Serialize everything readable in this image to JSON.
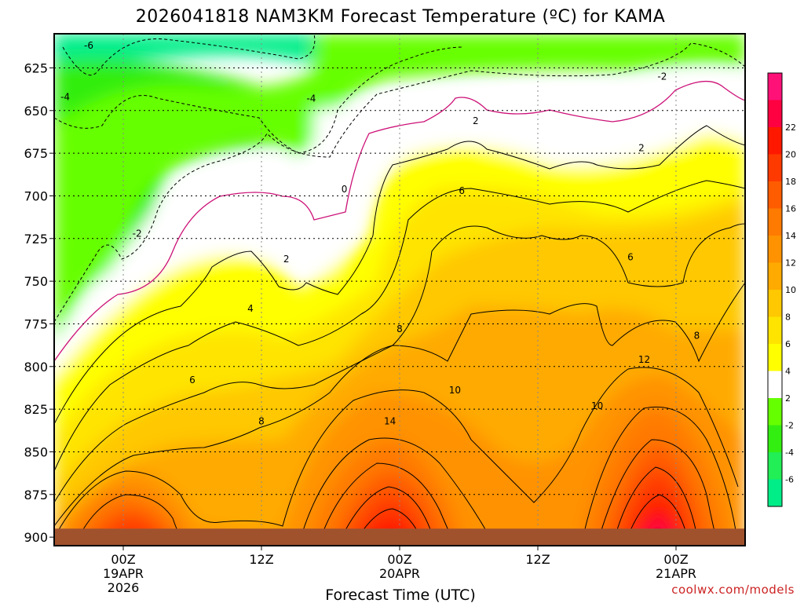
{
  "chart_data": {
    "type": "heatmap",
    "title": "2026041818 NAM3KM Forecast Temperature (ºC) for KAMA",
    "xlabel": "Forecast Time (UTC)",
    "ylabel": "",
    "credit": "coolwx.com/models",
    "x_range_hours": [
      -5,
      45
    ],
    "y_range_hpa": [
      605,
      905
    ],
    "y_ticks": [
      {
        "value": 625,
        "label": "625"
      },
      {
        "value": 650,
        "label": "650"
      },
      {
        "value": 675,
        "label": "675"
      },
      {
        "value": 700,
        "label": "700"
      },
      {
        "value": 725,
        "label": "725"
      },
      {
        "value": 750,
        "label": "750"
      },
      {
        "value": 775,
        "label": "775"
      },
      {
        "value": 800,
        "label": "800"
      },
      {
        "value": 825,
        "label": "825"
      },
      {
        "value": 850,
        "label": "850"
      },
      {
        "value": 875,
        "label": "875"
      },
      {
        "value": 900,
        "label": "900"
      }
    ],
    "x_ticks": [
      {
        "hour": 0,
        "lines": [
          "00Z",
          "19APR",
          "2026"
        ]
      },
      {
        "hour": 10,
        "lines": [
          "12Z"
        ]
      },
      {
        "hour": 20,
        "lines": [
          "00Z",
          "20APR"
        ]
      },
      {
        "hour": 30,
        "lines": [
          "12Z"
        ]
      },
      {
        "hour": 40,
        "lines": [
          "00Z",
          "21APR"
        ]
      }
    ],
    "color_levels": [
      {
        "label": "",
        "color": "#00ee88"
      },
      {
        "label": "-6",
        "color": "#22ee55"
      },
      {
        "label": "-4",
        "color": "#33ee11"
      },
      {
        "label": "-2",
        "color": "#66ff00"
      },
      {
        "label": "2",
        "color": "#ffffff"
      },
      {
        "label": "4",
        "color": "#ffff00"
      },
      {
        "label": "6",
        "color": "#ffe400"
      },
      {
        "label": "8",
        "color": "#ffc800"
      },
      {
        "label": "10",
        "color": "#ffaa00"
      },
      {
        "label": "12",
        "color": "#ff9200"
      },
      {
        "label": "14",
        "color": "#ff7a00"
      },
      {
        "label": "16",
        "color": "#ff5c00"
      },
      {
        "label": "18",
        "color": "#ff3a00"
      },
      {
        "label": "20",
        "color": "#ff1800"
      },
      {
        "label": "22",
        "color": "#ff0040"
      },
      {
        "label": "",
        "color": "#ff1177"
      }
    ],
    "contour_labels": [
      {
        "text": "-6",
        "hour": -2.5,
        "hpa": 612
      },
      {
        "text": "-4",
        "hour": -4.2,
        "hpa": 642
      },
      {
        "text": "-4",
        "hour": 13.6,
        "hpa": 643
      },
      {
        "text": "-2",
        "hour": 39.0,
        "hpa": 630
      },
      {
        "text": "-2",
        "hour": 1.0,
        "hpa": 722
      },
      {
        "text": "0",
        "hour": 16.0,
        "hpa": 696
      },
      {
        "text": "2",
        "hour": 25.5,
        "hpa": 656
      },
      {
        "text": "2",
        "hour": 37.5,
        "hpa": 672
      },
      {
        "text": "2",
        "hour": 11.8,
        "hpa": 737
      },
      {
        "text": "4",
        "hour": 9.2,
        "hpa": 766
      },
      {
        "text": "6",
        "hour": 24.5,
        "hpa": 697
      },
      {
        "text": "6",
        "hour": 36.7,
        "hpa": 736
      },
      {
        "text": "6",
        "hour": 5.0,
        "hpa": 808
      },
      {
        "text": "8",
        "hour": 20.0,
        "hpa": 778
      },
      {
        "text": "8",
        "hour": 10.0,
        "hpa": 832
      },
      {
        "text": "8",
        "hour": 41.5,
        "hpa": 782
      },
      {
        "text": "10",
        "hour": 24.0,
        "hpa": 814
      },
      {
        "text": "10",
        "hour": 34.3,
        "hpa": 823
      },
      {
        "text": "12",
        "hour": 37.7,
        "hpa": 796
      },
      {
        "text": "14",
        "hour": 19.3,
        "hpa": 832
      }
    ],
    "ground_level_hpa": 895,
    "ground_color": "#a0522d",
    "grid": "dotted"
  }
}
